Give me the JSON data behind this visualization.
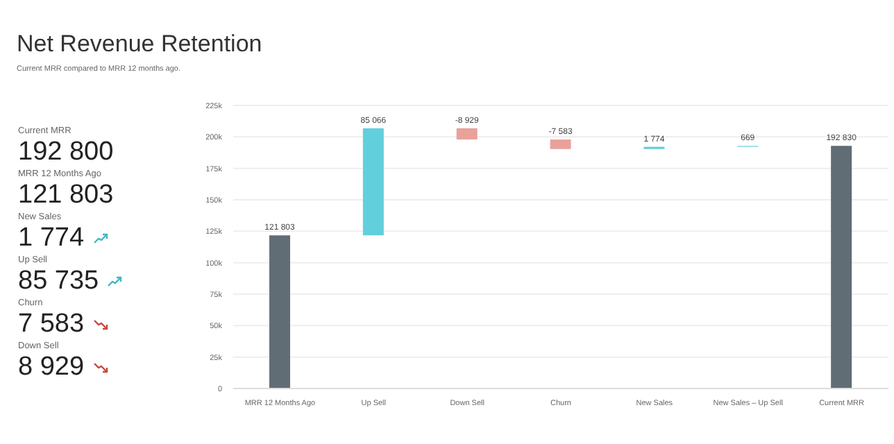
{
  "chart_data": [
    {
      "type": "other",
      "title": "Net Revenue Retention",
      "subtitle": "Current MRR compared to MRR 12 months ago.",
      "categories": [
        "Current MRR",
        "MRR 12 Months Ago",
        "New Sales",
        "Up Sell",
        "Churn",
        "Down Sell"
      ],
      "values": [
        192800,
        121803,
        1774,
        85735,
        7583,
        8929
      ],
      "value_labels": [
        "192 800",
        "121 803",
        "1 774",
        "85 735",
        "7 583",
        "8 929"
      ]
    },
    {
      "type": "bar",
      "categories": [
        "MRR 12 Months Ago",
        "Up Sell",
        "Down Sell",
        "Churn",
        "New Sales",
        "New Sales – Up Sell",
        "Current MRR"
      ],
      "values": [
        121803,
        85066,
        -8929,
        -7583,
        1774,
        669,
        192830
      ],
      "base": [
        0,
        121803,
        206869,
        197940,
        190357,
        192131,
        0
      ],
      "colors": [
        "#606d74",
        "#62cfdc",
        "#e8a29a",
        "#e8a29a",
        "#62cfdc",
        "#62cfdc",
        "#606d74"
      ],
      "value_labels": [
        "121 803",
        "85 066",
        "-8 929",
        "-7 583",
        "1 774",
        "669",
        "192 830"
      ],
      "ylim": [
        0,
        225000
      ],
      "yticks": [
        {
          "value": 0,
          "label": "0"
        },
        {
          "value": 25000,
          "label": "25k"
        },
        {
          "value": 50000,
          "label": "50k"
        },
        {
          "value": 75000,
          "label": "75k"
        },
        {
          "value": 100000,
          "label": "100k"
        },
        {
          "value": 125000,
          "label": "125k"
        },
        {
          "value": 150000,
          "label": "150k"
        },
        {
          "value": 175000,
          "label": "175k"
        },
        {
          "value": 200000,
          "label": "200k"
        },
        {
          "value": 225000,
          "label": "225k"
        }
      ],
      "grid": "y"
    }
  ]
}
